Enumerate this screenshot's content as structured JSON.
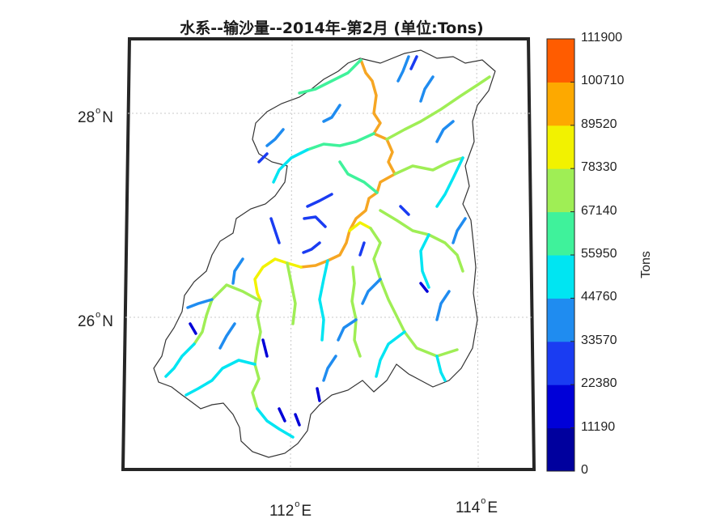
{
  "title": "水系--输沙量--2014年-第2月  (单位:Tons)",
  "axes": {
    "lat_labels": [
      {
        "deg": "28",
        "hemi": "N"
      },
      {
        "deg": "26",
        "hemi": "N"
      }
    ],
    "lon_labels": [
      {
        "deg": "112",
        "hemi": "E"
      },
      {
        "deg": "114",
        "hemi": "E"
      }
    ],
    "degree_symbol": "o",
    "grid": true
  },
  "colorbar": {
    "unit_label": "Tons",
    "ticks": [
      "111900",
      "100710",
      "89520",
      "78330",
      "67140",
      "55950",
      "44760",
      "33570",
      "22380",
      "11190",
      "0"
    ],
    "colors": [
      "#00009e",
      "#0000d8",
      "#1a3cf2",
      "#1f8cf0",
      "#00e5f2",
      "#3ff29b",
      "#9fee55",
      "#f2f200",
      "#fda900",
      "#ff5c00"
    ]
  },
  "legend_colors": {
    "main_river": "#f6a623",
    "major_tributary": "#f2f200",
    "secondary": "#9fee55",
    "basin_outline": "#333333"
  }
}
